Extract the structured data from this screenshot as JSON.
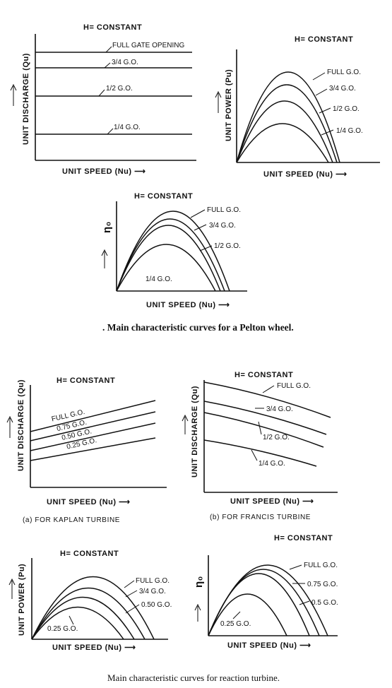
{
  "diagrams": {
    "pelton_discharge": {
      "title": "H= CONSTANT",
      "ylabel": "UNIT DISCHARGE (Qu)",
      "xlabel": "UNIT SPEED (Nu) ⟶",
      "curves": [
        "FULL GATE OPENING",
        "3/4 G.O.",
        "1/2 G.O.",
        "1/4 G.O."
      ]
    },
    "pelton_power": {
      "title": "H= CONSTANT",
      "ylabel": "UNIT POWER (Pu)",
      "xlabel": "UNIT SPEED (Nu) ⟶",
      "curves": [
        "FULL G.O.",
        "3/4 G.O.",
        "1/2 G.O.",
        "1/4 G.O."
      ]
    },
    "pelton_efficiency": {
      "title": "H= CONSTANT",
      "ylabel": "η₀",
      "xlabel": "UNIT SPEED (Nu) ⟶",
      "curves": [
        "FULL G.O.",
        "3/4 G.O.",
        "1/2 G.O.",
        "1/4 G.O."
      ]
    },
    "kaplan_discharge": {
      "title": "H= CONSTANT",
      "ylabel": "UNIT DISCHARGE (Qu)",
      "xlabel": "UNIT SPEED (Nu) ⟶",
      "subcaption": "(a) FOR KAPLAN TURBINE",
      "curves": [
        "FULL G.O.",
        "0.75 G.O.",
        "0.50 G.O.",
        "0.25 G.O."
      ]
    },
    "francis_discharge": {
      "title": "H= CONSTANT",
      "ylabel": "UNIT DISCHARGE (Qu)",
      "xlabel": "UNIT SPEED (Nu) ⟶",
      "subcaption": "(b) FOR FRANCIS TURBINE",
      "curves": [
        "FULL G.O.",
        "3/4 G.O.",
        "1/2 G.O.",
        "1/4 G.O."
      ]
    },
    "reaction_power": {
      "title": "H= CONSTANT",
      "ylabel": "UNIT POWER (Pu)",
      "xlabel": "UNIT SPEED (Nu) ⟶",
      "curves": [
        "FULL G.O.",
        "3/4 G.O.",
        "0.50 G.O.",
        "0.25 G.O."
      ]
    },
    "reaction_efficiency": {
      "title": "H= CONSTANT",
      "ylabel": "η₀",
      "xlabel": "UNIT SPEED (Nu) ⟶",
      "curves": [
        "FULL G.O.",
        "0.75 G.O.",
        "0.5 G.O.",
        "0.25 G.O."
      ]
    }
  },
  "captions": {
    "pelton": ". Main characteristic curves for a Pelton wheel.",
    "reaction": "Main characteristic curves for reaction turbine."
  }
}
